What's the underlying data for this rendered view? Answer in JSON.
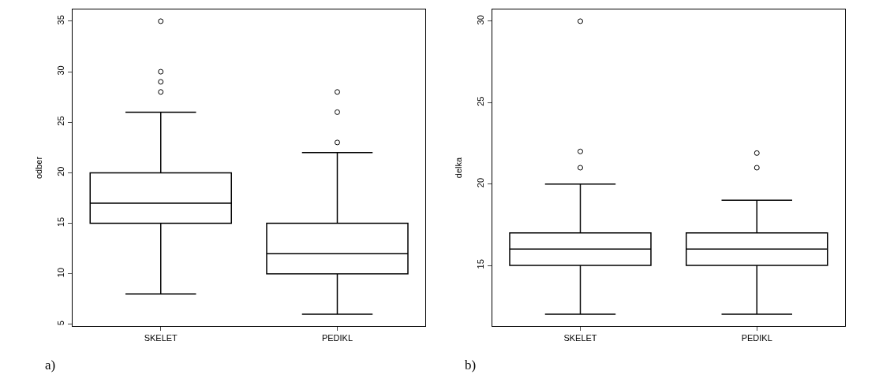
{
  "chart_data": [
    {
      "type": "box",
      "categories": [
        "SKELET",
        "PEDIKL"
      ],
      "ylabel": "odber",
      "ylim": [
        4.84,
        36.16
      ],
      "yticks": [
        5,
        10,
        15,
        20,
        25,
        30,
        35
      ],
      "marker": "circle",
      "color": "#000000",
      "boxes": [
        {
          "low": 8,
          "q1": 15,
          "median": 17,
          "q3": 20,
          "high": 26,
          "outliers": [
            28,
            29,
            30,
            35
          ]
        },
        {
          "low": 6,
          "q1": 10,
          "median": 12,
          "q3": 15,
          "high": 22,
          "outliers": [
            23,
            26,
            28
          ]
        }
      ],
      "annotations": [
        "a)"
      ]
    },
    {
      "type": "box",
      "categories": [
        "SKELET",
        "PEDIKL"
      ],
      "ylabel": "delka",
      "ylim": [
        11.28,
        30.72
      ],
      "yticks": [
        15,
        20,
        25,
        30
      ],
      "marker": "circle",
      "color": "#000000",
      "boxes": [
        {
          "low": 12,
          "q1": 15,
          "median": 16,
          "q3": 17,
          "high": 20,
          "outliers": [
            21,
            22,
            30
          ]
        },
        {
          "low": 12,
          "q1": 15,
          "median": 16,
          "q3": 17,
          "high": 19,
          "outliers": [
            21,
            21.9
          ]
        }
      ],
      "annotations": [
        "b)"
      ]
    }
  ]
}
